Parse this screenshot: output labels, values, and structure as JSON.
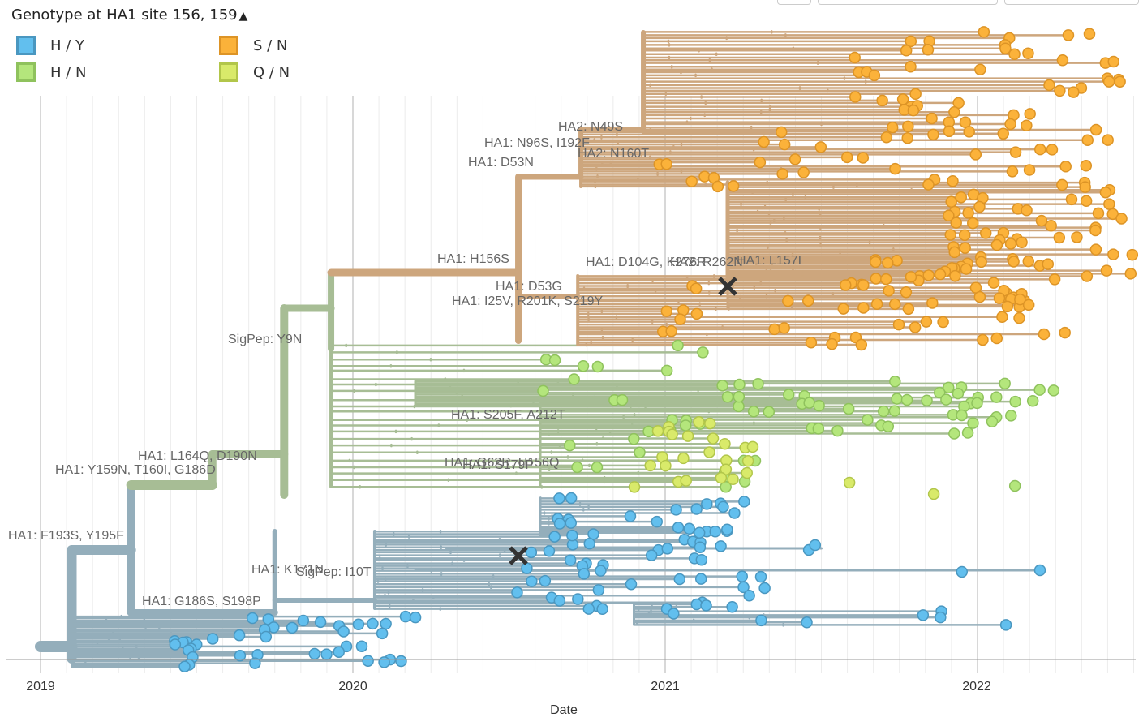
{
  "legend": {
    "title": "Genotype at HA1 site 156, 159",
    "toggle_icon": "chevron-up-icon",
    "items": [
      {
        "label": "H / Y",
        "fill": "#62bfee",
        "stroke": "#4a97c0"
      },
      {
        "label": "S / N",
        "fill": "#fbb23a",
        "stroke": "#dd9426"
      },
      {
        "label": "H / N",
        "fill": "#b4e67c",
        "stroke": "#8fc25d"
      },
      {
        "label": "Q / N",
        "fill": "#d9ea6a",
        "stroke": "#b2c64a"
      }
    ]
  },
  "chart_data": {
    "type": "scatter",
    "subtype": "phylogenetic-tree",
    "xlabel": "Date",
    "ylabel": "",
    "x_ticks": [
      "2019",
      "2020",
      "2021",
      "2022"
    ],
    "xlim": [
      2018.97,
      2022.5
    ],
    "clade_colors": {
      "H / Y": "#94aebb",
      "H / N": "#a7bd95",
      "S / N": "#cda67d"
    },
    "mutation_labels": [
      "HA2: N49S",
      "HA1: N96S, I192F",
      "HA2: N160T",
      "HA1: D53N",
      "HA1: H156S",
      "HA1: D104G, K276R",
      "HA2: R262N",
      "HA1: L157I",
      "HA1: D53G",
      "HA1: I25V, R201K, S219Y",
      "SigPep: Y9N",
      "HA1: S205F, A212T",
      "HA1: L164Q, D190N",
      "HA1: Y159N, T160I, G186D",
      "HA1: G62R, H156Q",
      "HA1: S179P",
      "HA1: F193S, Y195F",
      "HA1: K171N",
      "SigPep: I10T",
      "HA1: G186S, S198P"
    ],
    "marks": [
      {
        "name": "mutation-marker-x",
        "x": 2021.2
      },
      {
        "name": "mutation-marker-x",
        "x": 2020.53
      }
    ]
  }
}
